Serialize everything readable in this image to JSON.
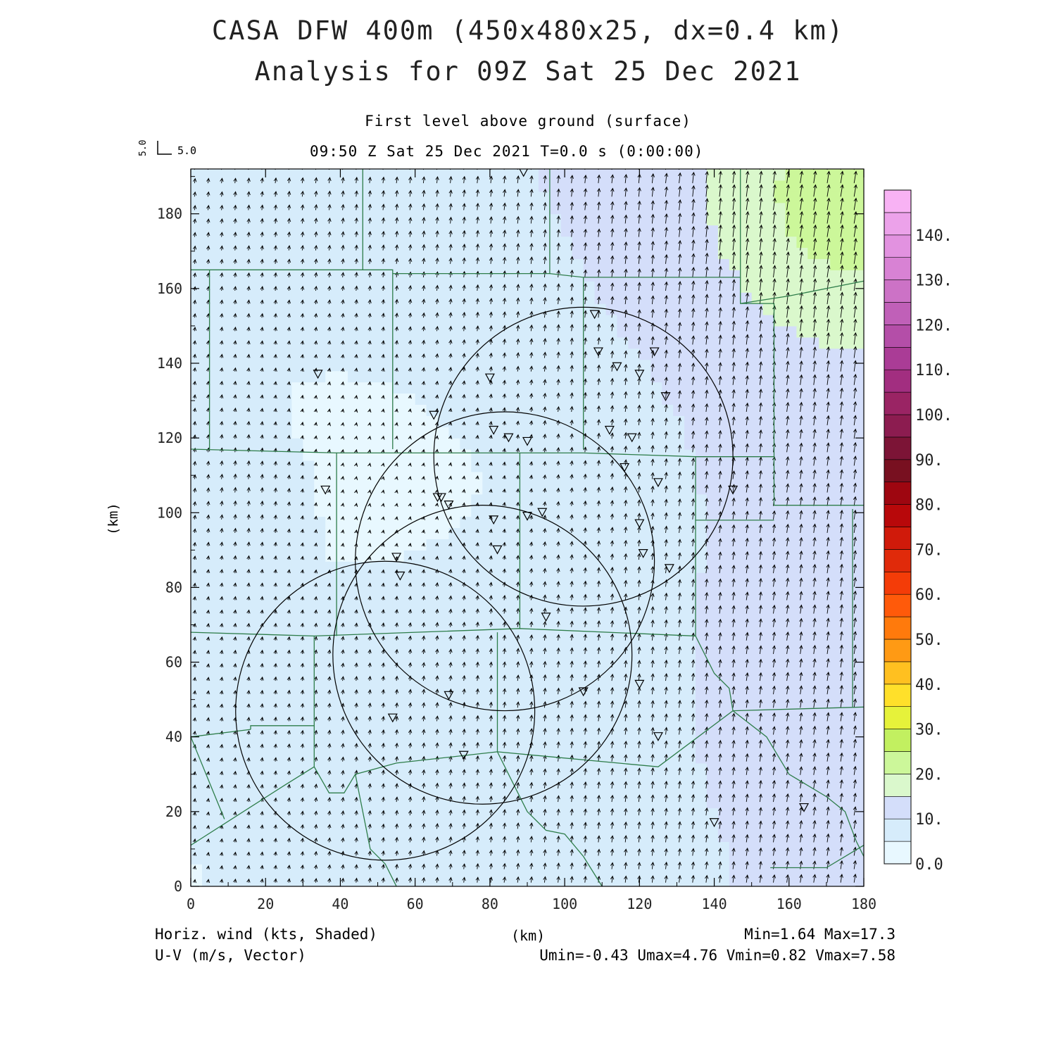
{
  "header": {
    "title_line1": "CASA DFW 400m (450x480x25, dx=0.4 km)",
    "title_line2": "Analysis for 09Z Sat 25 Dec 2021",
    "subtitle": "First level above ground (surface)",
    "time_line": "09:50 Z Sat 25 Dec 2021   T=0.0 s (0:00:00)",
    "vector_ref_u": "5.0",
    "vector_ref_v": "5.0"
  },
  "footer": {
    "left_line1": "Horiz. wind (kts, Shaded)",
    "left_line2": "U-V (m/s, Vector)",
    "right_line1": "Min=1.64 Max=17.3",
    "right_line2": "Umin=-0.43 Umax=4.76 Vmin=0.82 Vmax=7.58"
  },
  "chart_data": {
    "type": "heatmap",
    "xlabel": "(km)",
    "ylabel": "(km)",
    "xlim": [
      0,
      180
    ],
    "ylim": [
      0,
      192
    ],
    "xticks": [
      0,
      20,
      40,
      60,
      80,
      100,
      120,
      140,
      160,
      180
    ],
    "yticks": [
      0,
      20,
      40,
      60,
      80,
      100,
      120,
      140,
      160,
      180
    ],
    "xtick_labels": [
      "0",
      "20",
      "40",
      "60",
      "80",
      "100",
      "120",
      "140",
      "160",
      "180"
    ],
    "ytick_labels": [
      "0",
      "20",
      "40",
      "60",
      "80",
      "100",
      "120",
      "140",
      "160",
      "180"
    ],
    "colorbar": {
      "labels": [
        "0.0",
        "10.",
        "20.",
        "30.",
        "40.",
        "50.",
        "60.",
        "70.",
        "80.",
        "90.",
        "100.",
        "110.",
        "120.",
        "130.",
        "140."
      ],
      "colors": [
        "#e8f8ff",
        "#d6ecfb",
        "#d4defa",
        "#daf8cc",
        "#ccf79a",
        "#c2f060",
        "#e6f23a",
        "#ffe02a",
        "#ffc020",
        "#ff9a14",
        "#ff7a0c",
        "#ff5a0a",
        "#f43c08",
        "#e02a0a",
        "#d01a0a",
        "#b8080a",
        "#9e0610",
        "#781020",
        "#7c1436",
        "#8c1c50",
        "#9a2464",
        "#a22e80",
        "#aa3c96",
        "#b44ea8",
        "#c060b8",
        "#cc72c6",
        "#d882d4",
        "#e292e0",
        "#eca2ea",
        "#f8b2f4"
      ]
    },
    "wind_speed_kts": {
      "min": 1.64,
      "max": 17.3
    },
    "u_ms": {
      "min": -0.43,
      "max": 4.76
    },
    "v_ms": {
      "min": 0.82,
      "max": 7.58
    },
    "radar_circles": [
      {
        "center_km": [
          52,
          47
        ],
        "radius_km": 40
      },
      {
        "center_km": [
          78,
          62
        ],
        "radius_km": 40
      },
      {
        "center_km": [
          84,
          87
        ],
        "radius_km": 40
      },
      {
        "center_km": [
          105,
          115
        ],
        "radius_km": 40
      }
    ],
    "station_markers_km": [
      [
        89,
        191
      ],
      [
        108,
        153
      ],
      [
        109,
        143
      ],
      [
        114,
        139
      ],
      [
        124,
        143
      ],
      [
        120,
        137
      ],
      [
        127,
        131
      ],
      [
        80,
        136
      ],
      [
        65,
        126
      ],
      [
        81,
        122
      ],
      [
        85,
        120
      ],
      [
        90,
        119
      ],
      [
        112,
        122
      ],
      [
        118,
        120
      ],
      [
        34,
        137
      ],
      [
        36,
        106
      ],
      [
        66,
        104
      ],
      [
        67,
        104
      ],
      [
        69,
        102
      ],
      [
        116,
        112
      ],
      [
        125,
        108
      ],
      [
        145,
        106
      ],
      [
        81,
        98
      ],
      [
        90,
        99
      ],
      [
        94,
        100
      ],
      [
        120,
        97
      ],
      [
        82,
        90
      ],
      [
        121,
        89
      ],
      [
        128,
        85
      ],
      [
        55,
        88
      ],
      [
        56,
        83
      ],
      [
        95,
        72
      ],
      [
        69,
        51
      ],
      [
        105,
        52
      ],
      [
        120,
        54
      ],
      [
        54,
        45
      ],
      [
        125,
        40
      ],
      [
        73,
        35
      ],
      [
        164,
        21
      ],
      [
        140,
        17
      ]
    ]
  }
}
